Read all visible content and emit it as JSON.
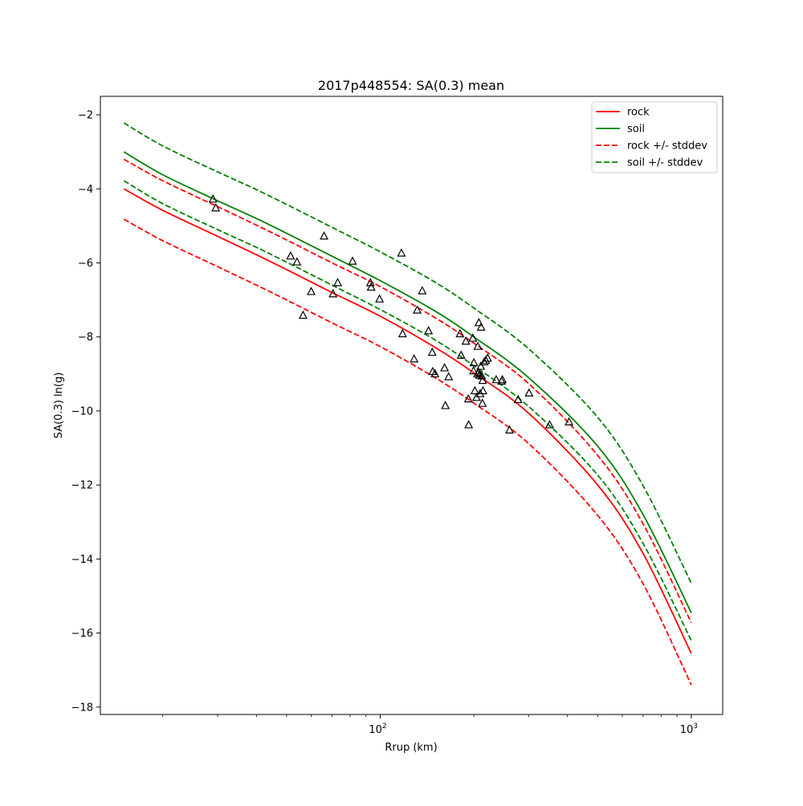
{
  "chart_data": {
    "type": "line",
    "title": "2017p448554: SA(0.3) mean",
    "xlabel": "Rrup (km)",
    "ylabel": "SA(0.3) ln(g)",
    "xscale": "log",
    "xlim": [
      12.6,
      1262
    ],
    "ylim": [
      -18.2,
      -1.5
    ],
    "yticks": [
      -2,
      -4,
      -6,
      -8,
      -10,
      -12,
      -14,
      -16,
      -18
    ],
    "yticklabels": [
      "−2",
      "−4",
      "−6",
      "−8",
      "−10",
      "−12",
      "−14",
      "−16",
      "−18"
    ],
    "xticks": [
      100,
      1000
    ],
    "xtick_base": "10",
    "xtick_exps": [
      "2",
      "3"
    ],
    "minor_xticks": [
      20,
      30,
      40,
      50,
      60,
      70,
      80,
      90,
      200,
      300,
      400,
      500,
      600,
      700,
      800,
      900
    ],
    "grid": false,
    "legend": "upper right",
    "x": [
      15,
      20,
      30,
      40,
      50,
      70,
      100,
      150,
      200,
      300,
      500,
      700,
      1000
    ],
    "series": [
      {
        "name": "rock",
        "color": "#ff0000",
        "dash": false,
        "values": [
          -4.0,
          -4.58,
          -5.28,
          -5.78,
          -6.18,
          -6.8,
          -7.44,
          -8.28,
          -8.97,
          -10.06,
          -12.0,
          -13.85,
          -16.55
        ]
      },
      {
        "name": "soil",
        "color": "#008000",
        "dash": false,
        "values": [
          -3.0,
          -3.62,
          -4.32,
          -4.8,
          -5.2,
          -5.82,
          -6.48,
          -7.3,
          -8.0,
          -9.1,
          -10.95,
          -12.8,
          -15.45
        ]
      },
      {
        "name": "rock +/- stddev",
        "color": "#ff0000",
        "dash": true,
        "values": [
          -3.2,
          -3.78,
          -4.48,
          -4.98,
          -5.38,
          -6.0,
          -6.64,
          -7.48,
          -8.17,
          -9.26,
          -11.2,
          -13.05,
          -15.72
        ]
      },
      {
        "name": "",
        "color": "#ff0000",
        "dash": true,
        "values": [
          -4.82,
          -5.4,
          -6.1,
          -6.6,
          -7.0,
          -7.62,
          -8.26,
          -9.1,
          -9.79,
          -10.88,
          -12.82,
          -14.67,
          -17.4
        ]
      },
      {
        "name": "soil +/- stddev",
        "color": "#008000",
        "dash": true,
        "values": [
          -2.22,
          -2.84,
          -3.54,
          -4.02,
          -4.42,
          -5.04,
          -5.7,
          -6.52,
          -7.22,
          -8.32,
          -10.17,
          -12.02,
          -14.65
        ]
      },
      {
        "name": "",
        "color": "#008000",
        "dash": true,
        "values": [
          -3.78,
          -4.4,
          -5.1,
          -5.58,
          -5.98,
          -6.6,
          -7.26,
          -8.08,
          -8.78,
          -9.88,
          -11.73,
          -13.58,
          -16.2
        ]
      }
    ],
    "observations": [
      [
        29,
        -4.28
      ],
      [
        29.6,
        -4.52
      ],
      [
        51.5,
        -5.82
      ],
      [
        54,
        -5.98
      ],
      [
        56.5,
        -7.42
      ],
      [
        60,
        -6.78
      ],
      [
        66,
        -5.28
      ],
      [
        70.5,
        -6.84
      ],
      [
        73,
        -6.54
      ],
      [
        81.5,
        -5.96
      ],
      [
        93,
        -6.54
      ],
      [
        93.5,
        -6.66
      ],
      [
        99.5,
        -6.98
      ],
      [
        117,
        -5.74
      ],
      [
        118,
        -7.92
      ],
      [
        128.5,
        -8.6
      ],
      [
        131.5,
        -7.28
      ],
      [
        136.5,
        -6.76
      ],
      [
        143,
        -7.84
      ],
      [
        147,
        -8.42
      ],
      [
        147.5,
        -8.94
      ],
      [
        150,
        -9.0
      ],
      [
        161,
        -8.84
      ],
      [
        162,
        -9.86
      ],
      [
        166,
        -9.08
      ],
      [
        180.5,
        -7.92
      ],
      [
        182,
        -8.5
      ],
      [
        188.5,
        -8.12
      ],
      [
        192,
        -9.68
      ],
      [
        192.5,
        -10.38
      ],
      [
        198.5,
        -8.04
      ],
      [
        199.5,
        -8.92
      ],
      [
        200,
        -8.7
      ],
      [
        201.5,
        -9.46
      ],
      [
        204,
        -9.64
      ],
      [
        205.5,
        -9.0
      ],
      [
        206,
        -8.26
      ],
      [
        207,
        -8.96
      ],
      [
        207.5,
        -7.62
      ],
      [
        208.5,
        -9.04
      ],
      [
        209.5,
        -9.54
      ],
      [
        210.5,
        -8.8
      ],
      [
        211,
        -7.74
      ],
      [
        212,
        -9.06
      ],
      [
        213,
        -9.8
      ],
      [
        213.5,
        -9.18
      ],
      [
        214,
        -9.46
      ],
      [
        216,
        -8.68
      ],
      [
        218.5,
        -8.64
      ],
      [
        221.5,
        -8.58
      ],
      [
        236,
        -9.16
      ],
      [
        245.5,
        -9.2
      ],
      [
        247,
        -9.16
      ],
      [
        260.5,
        -10.52
      ],
      [
        277.5,
        -9.7
      ],
      [
        301,
        -9.52
      ],
      [
        350.5,
        -10.38
      ],
      [
        404.5,
        -10.3
      ]
    ]
  }
}
